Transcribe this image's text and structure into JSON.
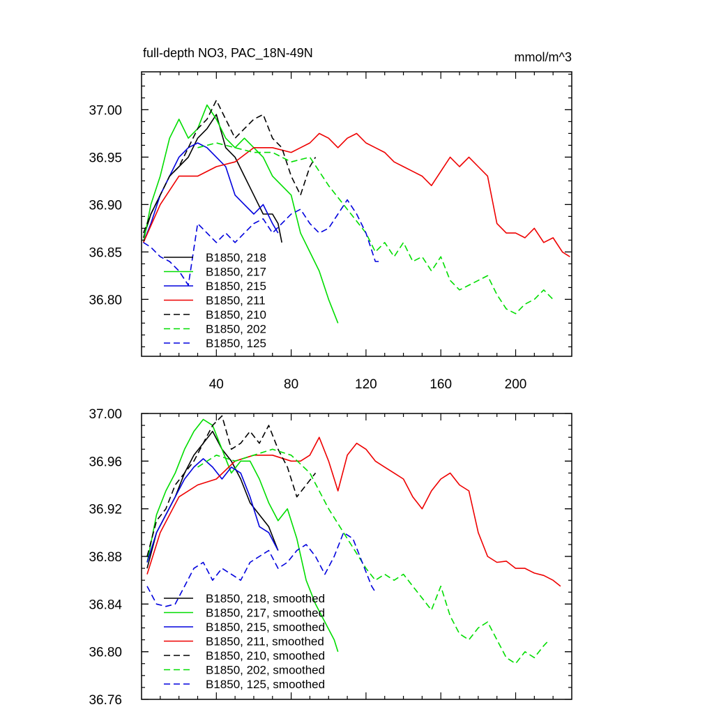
{
  "chart_data": [
    {
      "type": "line",
      "title": "full-depth NO3, PAC_18N-49N",
      "units": "mmol/m^3",
      "xlabel": "",
      "ylabel": "",
      "xlim": [
        0,
        230
      ],
      "ylim": [
        36.74,
        37.04
      ],
      "xticks": [
        40,
        80,
        120,
        160,
        200
      ],
      "xtick_labels": [
        "40",
        "80",
        "120",
        "160",
        "200"
      ],
      "yticks": [
        36.8,
        36.85,
        36.9,
        36.95,
        37.0
      ],
      "ytick_labels": [
        "36.80",
        "36.85",
        "36.90",
        "36.95",
        "37.00"
      ],
      "legend_position": "lower-left",
      "series": [
        {
          "name": "B1850, 218",
          "color": "#000000",
          "dash": "solid",
          "x": [
            1,
            5,
            10,
            15,
            20,
            25,
            30,
            35,
            40,
            45,
            50,
            55,
            60,
            65,
            70,
            73,
            75
          ],
          "y": [
            36.865,
            36.89,
            36.91,
            36.93,
            36.94,
            36.95,
            36.97,
            36.98,
            36.995,
            36.96,
            36.95,
            36.93,
            36.91,
            36.89,
            36.89,
            36.88,
            36.86
          ]
        },
        {
          "name": "B1850, 217",
          "color": "#00dd00",
          "dash": "solid",
          "x": [
            1,
            5,
            10,
            15,
            20,
            25,
            30,
            35,
            40,
            45,
            50,
            55,
            60,
            65,
            70,
            75,
            80,
            85,
            90,
            95,
            100,
            105
          ],
          "y": [
            36.86,
            36.9,
            36.93,
            36.97,
            36.99,
            36.97,
            36.98,
            37.005,
            36.99,
            36.97,
            36.96,
            36.97,
            36.96,
            36.95,
            36.93,
            36.92,
            36.91,
            36.87,
            36.85,
            36.83,
            36.8,
            36.775
          ]
        },
        {
          "name": "B1850, 215",
          "color": "#0000dd",
          "dash": "solid",
          "x": [
            1,
            5,
            10,
            15,
            20,
            25,
            30,
            35,
            40,
            45,
            50,
            55,
            60,
            65,
            70,
            73
          ],
          "y": [
            36.86,
            36.88,
            36.91,
            36.93,
            36.95,
            36.96,
            36.965,
            36.96,
            36.95,
            36.94,
            36.91,
            36.9,
            36.89,
            36.9,
            36.88,
            36.87
          ]
        },
        {
          "name": "B1850, 211",
          "color": "#ee0000",
          "dash": "solid",
          "x": [
            1,
            10,
            20,
            30,
            40,
            50,
            60,
            70,
            80,
            85,
            90,
            95,
            100,
            105,
            110,
            115,
            120,
            125,
            130,
            135,
            140,
            145,
            150,
            155,
            160,
            165,
            170,
            175,
            180,
            185,
            190,
            195,
            200,
            205,
            210,
            215,
            220,
            225,
            229
          ],
          "y": [
            36.86,
            36.9,
            36.93,
            36.93,
            36.94,
            36.945,
            36.96,
            36.96,
            36.955,
            36.96,
            36.965,
            36.975,
            36.97,
            36.96,
            36.97,
            36.975,
            36.965,
            36.96,
            36.955,
            36.945,
            36.94,
            36.935,
            36.93,
            36.92,
            36.935,
            36.95,
            36.94,
            36.95,
            36.94,
            36.93,
            36.88,
            36.87,
            36.87,
            36.865,
            36.875,
            36.86,
            36.865,
            36.85,
            36.845
          ]
        },
        {
          "name": "B1850, 210",
          "color": "#000000",
          "dash": "dash",
          "x": [
            1,
            5,
            10,
            15,
            20,
            25,
            30,
            35,
            40,
            45,
            50,
            55,
            60,
            65,
            70,
            75,
            80,
            85,
            90,
            93
          ],
          "y": [
            36.87,
            36.89,
            36.91,
            36.93,
            36.94,
            36.96,
            36.98,
            36.99,
            37.01,
            36.99,
            36.97,
            36.98,
            36.99,
            36.995,
            36.97,
            36.96,
            36.93,
            36.91,
            36.94,
            36.95
          ]
        },
        {
          "name": "B1850, 202",
          "color": "#00dd00",
          "dash": "dash",
          "x": [
            30,
            40,
            50,
            60,
            70,
            80,
            90,
            100,
            110,
            120,
            125,
            130,
            135,
            140,
            145,
            150,
            155,
            160,
            165,
            170,
            175,
            180,
            185,
            190,
            195,
            200,
            205,
            210,
            215,
            220
          ],
          "y": [
            36.96,
            36.965,
            36.96,
            36.955,
            36.955,
            36.945,
            36.95,
            36.92,
            36.895,
            36.87,
            36.85,
            36.86,
            36.845,
            36.86,
            36.84,
            36.845,
            36.83,
            36.845,
            36.82,
            36.81,
            36.815,
            36.82,
            36.825,
            36.805,
            36.79,
            36.785,
            36.795,
            36.8,
            36.81,
            36.8
          ]
        },
        {
          "name": "B1850, 125",
          "color": "#0000dd",
          "dash": "dash",
          "x": [
            1,
            5,
            10,
            15,
            20,
            25,
            30,
            35,
            40,
            45,
            50,
            55,
            60,
            65,
            70,
            75,
            80,
            85,
            90,
            95,
            100,
            105,
            110,
            115,
            120,
            125,
            127
          ],
          "y": [
            36.86,
            36.855,
            36.845,
            36.84,
            36.83,
            36.815,
            36.88,
            36.87,
            36.86,
            36.87,
            36.86,
            36.87,
            36.88,
            36.885,
            36.87,
            36.88,
            36.89,
            36.895,
            36.88,
            36.87,
            36.875,
            36.89,
            36.905,
            36.89,
            36.87,
            36.84,
            36.84
          ]
        }
      ]
    },
    {
      "type": "line",
      "title": "",
      "xlabel": "",
      "ylabel": "",
      "xlim": [
        0,
        230
      ],
      "ylim": [
        36.76,
        37.0
      ],
      "xticks": [
        40,
        80,
        120,
        160,
        200
      ],
      "xtick_labels": [],
      "yticks": [
        36.76,
        36.8,
        36.84,
        36.88,
        36.92,
        36.96,
        37.0
      ],
      "ytick_labels": [
        "36.76",
        "36.80",
        "36.84",
        "36.88",
        "36.92",
        "36.96",
        "37.00"
      ],
      "legend_position": "lower-left",
      "series": [
        {
          "name": "B1850, 218, smoothed",
          "color": "#000000",
          "dash": "solid",
          "x": [
            3,
            8,
            13,
            18,
            23,
            28,
            33,
            38,
            43,
            48,
            53,
            58,
            63,
            68,
            73
          ],
          "y": [
            36.87,
            36.9,
            36.915,
            36.93,
            36.95,
            36.965,
            36.975,
            36.985,
            36.97,
            36.96,
            36.945,
            36.925,
            36.915,
            36.905,
            36.885
          ]
        },
        {
          "name": "B1850, 217, smoothed",
          "color": "#00dd00",
          "dash": "solid",
          "x": [
            3,
            8,
            13,
            18,
            23,
            28,
            33,
            38,
            43,
            48,
            53,
            58,
            63,
            68,
            73,
            78,
            83,
            88,
            93,
            98,
            103,
            105
          ],
          "y": [
            36.875,
            36.915,
            36.935,
            36.95,
            36.97,
            36.985,
            36.995,
            36.99,
            36.97,
            36.95,
            36.96,
            36.96,
            36.945,
            36.925,
            36.91,
            36.92,
            36.895,
            36.86,
            36.84,
            36.825,
            36.81,
            36.8
          ]
        },
        {
          "name": "B1850, 215, smoothed",
          "color": "#0000dd",
          "dash": "solid",
          "x": [
            3,
            8,
            13,
            18,
            23,
            28,
            33,
            38,
            43,
            48,
            53,
            58,
            63,
            68,
            73
          ],
          "y": [
            36.875,
            36.9,
            36.915,
            36.93,
            36.945,
            36.955,
            36.962,
            36.955,
            36.945,
            36.955,
            36.95,
            36.93,
            36.905,
            36.9,
            36.885
          ]
        },
        {
          "name": "B1850, 211, smoothed",
          "color": "#ee0000",
          "dash": "solid",
          "x": [
            3,
            10,
            20,
            30,
            40,
            50,
            60,
            70,
            80,
            85,
            90,
            95,
            100,
            105,
            110,
            115,
            120,
            125,
            130,
            135,
            140,
            145,
            150,
            155,
            160,
            165,
            170,
            175,
            180,
            185,
            190,
            195,
            200,
            205,
            210,
            215,
            220,
            224
          ],
          "y": [
            36.865,
            36.9,
            36.93,
            36.94,
            36.945,
            36.96,
            36.965,
            36.965,
            36.96,
            36.96,
            36.965,
            36.98,
            36.96,
            36.935,
            36.965,
            36.975,
            36.97,
            36.96,
            36.955,
            36.95,
            36.945,
            36.93,
            36.92,
            36.935,
            36.945,
            36.95,
            36.94,
            36.935,
            36.9,
            36.88,
            36.875,
            36.876,
            36.87,
            36.87,
            36.866,
            36.864,
            36.86,
            36.855
          ]
        },
        {
          "name": "B1850, 210, smoothed",
          "color": "#000000",
          "dash": "dash",
          "x": [
            3,
            8,
            13,
            18,
            23,
            28,
            33,
            38,
            43,
            48,
            53,
            58,
            63,
            68,
            73,
            78,
            83,
            88,
            93
          ],
          "y": [
            36.88,
            36.91,
            36.92,
            36.94,
            36.95,
            36.96,
            36.975,
            36.99,
            36.998,
            36.97,
            36.975,
            36.985,
            36.975,
            36.99,
            36.97,
            36.955,
            36.93,
            36.94,
            36.95
          ]
        },
        {
          "name": "B1850, 202, smoothed",
          "color": "#00dd00",
          "dash": "dash",
          "x": [
            30,
            40,
            50,
            60,
            70,
            80,
            90,
            100,
            110,
            120,
            125,
            130,
            135,
            140,
            145,
            150,
            155,
            160,
            165,
            170,
            175,
            180,
            185,
            190,
            195,
            200,
            205,
            210,
            215,
            218
          ],
          "y": [
            36.955,
            36.965,
            36.96,
            36.965,
            36.97,
            36.965,
            36.95,
            36.92,
            36.895,
            36.87,
            36.86,
            36.865,
            36.86,
            36.865,
            36.855,
            36.845,
            36.835,
            36.855,
            36.83,
            36.815,
            36.81,
            36.82,
            36.825,
            36.81,
            36.795,
            36.79,
            36.8,
            36.795,
            36.805,
            36.81
          ]
        },
        {
          "name": "B1850, 125, smoothed",
          "color": "#0000dd",
          "dash": "dash",
          "x": [
            3,
            8,
            13,
            18,
            23,
            28,
            33,
            38,
            43,
            48,
            53,
            58,
            63,
            68,
            73,
            78,
            83,
            88,
            93,
            98,
            103,
            108,
            113,
            118,
            123,
            125
          ],
          "y": [
            36.855,
            36.84,
            36.838,
            36.84,
            36.855,
            36.87,
            36.875,
            36.86,
            36.87,
            36.865,
            36.86,
            36.875,
            36.88,
            36.885,
            36.87,
            36.875,
            36.885,
            36.89,
            36.88,
            36.865,
            36.88,
            36.9,
            36.895,
            36.875,
            36.855,
            36.85
          ]
        }
      ]
    }
  ]
}
